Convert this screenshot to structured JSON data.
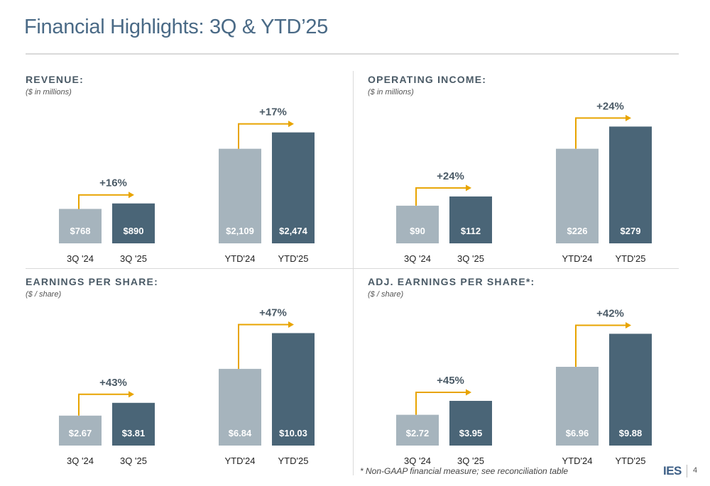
{
  "page": {
    "title": "Financial Highlights: 3Q & YTD’25",
    "footnote": "* Non-GAAP financial measure; see reconciliation table",
    "logo": "IES",
    "page_number": "4"
  },
  "colors": {
    "prior_bar": "#a6b4bd",
    "current_bar": "#4a6577",
    "arrow": "#e8a400",
    "title": "#4a6a86"
  },
  "chart_data": [
    {
      "type": "bar",
      "title": "REVENUE:",
      "subtitle": "($ in millions)",
      "categories": [
        "3Q '24",
        "3Q '25",
        "YTD'24",
        "YTD'25"
      ],
      "values": [
        768,
        890,
        2109,
        2474
      ],
      "labels": [
        "$768",
        "$890",
        "$2,109",
        "$2,474"
      ],
      "ylim": [
        0,
        2800
      ],
      "growth": [
        "+16%",
        "+17%"
      ]
    },
    {
      "type": "bar",
      "title": "OPERATING INCOME:",
      "subtitle": "($ in millions)",
      "categories": [
        "3Q '24",
        "3Q '25",
        "YTD'24",
        "YTD'25"
      ],
      "values": [
        90,
        112,
        226,
        279
      ],
      "labels": [
        "$90",
        "$112",
        "$226",
        "$279"
      ],
      "ylim": [
        0,
        300
      ],
      "growth": [
        "+24%",
        "+24%"
      ]
    },
    {
      "type": "bar",
      "title": "EARNINGS PER SHARE:",
      "subtitle": "($ / share)",
      "categories": [
        "3Q '24",
        "3Q '25",
        "YTD'24",
        "YTD'25"
      ],
      "values": [
        2.67,
        3.81,
        6.84,
        10.03
      ],
      "labels": [
        "$2.67",
        "$3.81",
        "$6.84",
        "$10.03"
      ],
      "ylim": [
        0,
        11.2
      ],
      "growth": [
        "+43%",
        "+47%"
      ]
    },
    {
      "type": "bar",
      "title": "ADJ. EARNINGS PER SHARE*:",
      "subtitle": "($ / share)",
      "categories": [
        "3Q '24",
        "3Q '25",
        "YTD'24",
        "YTD'25"
      ],
      "values": [
        2.72,
        3.95,
        6.96,
        9.88
      ],
      "labels": [
        "$2.72",
        "$3.95",
        "$6.96",
        "$9.88"
      ],
      "ylim": [
        0,
        11.1
      ],
      "growth": [
        "+45%",
        "+42%"
      ]
    }
  ]
}
